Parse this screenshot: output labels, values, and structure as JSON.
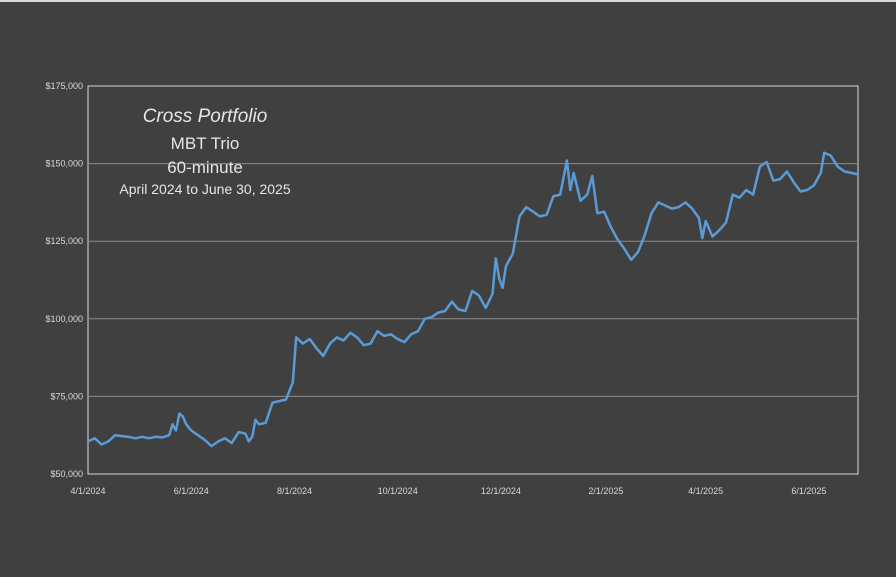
{
  "chart_data": {
    "type": "line",
    "title": "Cross Portfolio",
    "subtitle_lines": [
      "MBT Trio",
      "60-minute",
      "April 2024 to June 30, 2025"
    ],
    "xlabel": "",
    "ylabel": "",
    "x_tick_labels": [
      "4/1/2024",
      "6/1/2024",
      "8/1/2024",
      "10/1/2024",
      "12/1/2024",
      "2/1/2025",
      "4/1/2025",
      "6/1/2025"
    ],
    "x_tick_dates": [
      "2024-04-01",
      "2024-06-01",
      "2024-08-01",
      "2024-10-01",
      "2024-12-01",
      "2025-02-01",
      "2025-04-01",
      "2025-06-01"
    ],
    "y_tick_labels": [
      "$50,000",
      "$75,000",
      "$100,000",
      "$125,000",
      "$150,000",
      "$175,000"
    ],
    "y_tick_values": [
      50000,
      75000,
      100000,
      125000,
      150000,
      175000
    ],
    "xlim": [
      "2024-04-01",
      "2025-06-30"
    ],
    "ylim": [
      50000,
      175000
    ],
    "grid": "horizontal",
    "legend": "none",
    "series": [
      {
        "color": "#5b9bd5",
        "points": [
          [
            "2024-04-01",
            60500
          ],
          [
            "2024-04-05",
            61500
          ],
          [
            "2024-04-09",
            59500
          ],
          [
            "2024-04-13",
            60500
          ],
          [
            "2024-04-17",
            62500
          ],
          [
            "2024-04-21",
            62200
          ],
          [
            "2024-04-25",
            62000
          ],
          [
            "2024-04-29",
            61500
          ],
          [
            "2024-05-03",
            62000
          ],
          [
            "2024-05-07",
            61500
          ],
          [
            "2024-05-11",
            62000
          ],
          [
            "2024-05-15",
            61800
          ],
          [
            "2024-05-19",
            62500
          ],
          [
            "2024-05-21",
            66000
          ],
          [
            "2024-05-23",
            64000
          ],
          [
            "2024-05-25",
            69500
          ],
          [
            "2024-05-27",
            68500
          ],
          [
            "2024-05-29",
            66000
          ],
          [
            "2024-06-01",
            64000
          ],
          [
            "2024-06-05",
            62500
          ],
          [
            "2024-06-09",
            61000
          ],
          [
            "2024-06-13",
            59000
          ],
          [
            "2024-06-17",
            60500
          ],
          [
            "2024-06-21",
            61500
          ],
          [
            "2024-06-25",
            60000
          ],
          [
            "2024-06-29",
            63500
          ],
          [
            "2024-07-03",
            63000
          ],
          [
            "2024-07-05",
            60500
          ],
          [
            "2024-07-07",
            62000
          ],
          [
            "2024-07-09",
            67500
          ],
          [
            "2024-07-11",
            66000
          ],
          [
            "2024-07-15",
            66500
          ],
          [
            "2024-07-19",
            73000
          ],
          [
            "2024-07-23",
            73500
          ],
          [
            "2024-07-27",
            74000
          ],
          [
            "2024-07-31",
            79500
          ],
          [
            "2024-08-02",
            94000
          ],
          [
            "2024-08-06",
            92000
          ],
          [
            "2024-08-10",
            93500
          ],
          [
            "2024-08-14",
            90500
          ],
          [
            "2024-08-18",
            88000
          ],
          [
            "2024-08-22",
            92000
          ],
          [
            "2024-08-26",
            94000
          ],
          [
            "2024-08-30",
            93000
          ],
          [
            "2024-09-03",
            95500
          ],
          [
            "2024-09-07",
            94000
          ],
          [
            "2024-09-11",
            91500
          ],
          [
            "2024-09-15",
            92000
          ],
          [
            "2024-09-19",
            96000
          ],
          [
            "2024-09-23",
            94500
          ],
          [
            "2024-09-27",
            95000
          ],
          [
            "2024-10-01",
            93500
          ],
          [
            "2024-10-05",
            92500
          ],
          [
            "2024-10-09",
            95000
          ],
          [
            "2024-10-13",
            96000
          ],
          [
            "2024-10-17",
            100000
          ],
          [
            "2024-10-21",
            100500
          ],
          [
            "2024-10-25",
            102000
          ],
          [
            "2024-10-29",
            102500
          ],
          [
            "2024-11-02",
            105500
          ],
          [
            "2024-11-06",
            103000
          ],
          [
            "2024-11-10",
            102500
          ],
          [
            "2024-11-14",
            109000
          ],
          [
            "2024-11-18",
            107500
          ],
          [
            "2024-11-22",
            103500
          ],
          [
            "2024-11-26",
            108000
          ],
          [
            "2024-11-28",
            119500
          ],
          [
            "2024-11-30",
            113000
          ],
          [
            "2024-12-02",
            110000
          ],
          [
            "2024-12-04",
            117000
          ],
          [
            "2024-12-08",
            121000
          ],
          [
            "2024-12-12",
            133000
          ],
          [
            "2024-12-16",
            136000
          ],
          [
            "2024-12-20",
            134500
          ],
          [
            "2024-12-24",
            133000
          ],
          [
            "2024-12-28",
            133500
          ],
          [
            "2025-01-01",
            139500
          ],
          [
            "2025-01-05",
            140000
          ],
          [
            "2025-01-09",
            151000
          ],
          [
            "2025-01-11",
            141500
          ],
          [
            "2025-01-13",
            147000
          ],
          [
            "2025-01-17",
            138000
          ],
          [
            "2025-01-21",
            140000
          ],
          [
            "2025-01-24",
            146000
          ],
          [
            "2025-01-27",
            134000
          ],
          [
            "2025-01-31",
            134500
          ],
          [
            "2025-02-04",
            129500
          ],
          [
            "2025-02-08",
            125500
          ],
          [
            "2025-02-12",
            122500
          ],
          [
            "2025-02-16",
            119000
          ],
          [
            "2025-02-20",
            121500
          ],
          [
            "2025-02-24",
            127000
          ],
          [
            "2025-02-28",
            134000
          ],
          [
            "2025-03-04",
            137500
          ],
          [
            "2025-03-08",
            136500
          ],
          [
            "2025-03-12",
            135500
          ],
          [
            "2025-03-16",
            136000
          ],
          [
            "2025-03-20",
            137500
          ],
          [
            "2025-03-24",
            135500
          ],
          [
            "2025-03-28",
            132500
          ],
          [
            "2025-03-30",
            126000
          ],
          [
            "2025-04-01",
            131500
          ],
          [
            "2025-04-05",
            126500
          ],
          [
            "2025-04-09",
            128500
          ],
          [
            "2025-04-13",
            131000
          ],
          [
            "2025-04-17",
            140000
          ],
          [
            "2025-04-21",
            139000
          ],
          [
            "2025-04-25",
            141500
          ],
          [
            "2025-04-29",
            140000
          ],
          [
            "2025-05-03",
            149000
          ],
          [
            "2025-05-07",
            150500
          ],
          [
            "2025-05-11",
            144500
          ],
          [
            "2025-05-15",
            145000
          ],
          [
            "2025-05-19",
            147500
          ],
          [
            "2025-05-23",
            144000
          ],
          [
            "2025-05-27",
            141000
          ],
          [
            "2025-05-31",
            141500
          ],
          [
            "2025-06-04",
            143000
          ],
          [
            "2025-06-08",
            147000
          ],
          [
            "2025-06-10",
            153500
          ],
          [
            "2025-06-14",
            152500
          ],
          [
            "2025-06-18",
            149000
          ],
          [
            "2025-06-22",
            147500
          ],
          [
            "2025-06-26",
            147000
          ],
          [
            "2025-06-30",
            146500
          ]
        ]
      }
    ]
  }
}
